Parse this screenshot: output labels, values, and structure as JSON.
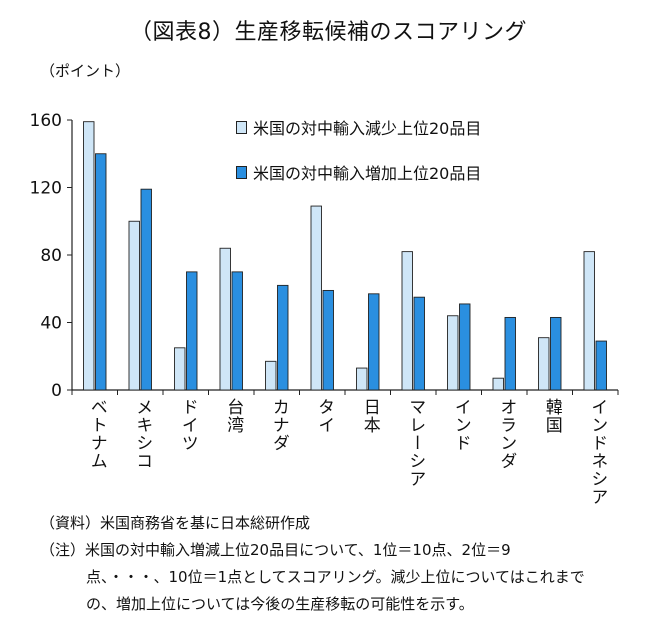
{
  "title": "（図表8）生産移転候補のスコアリング",
  "chart_data": {
    "type": "bar",
    "unit_label": "（ポイント）",
    "categories": [
      "ベトナム",
      "メキシコ",
      "ドイツ",
      "台湾",
      "カナダ",
      "タイ",
      "日本",
      "マレーシア",
      "インド",
      "オランダ",
      "韓国",
      "インドネシア"
    ],
    "series": [
      {
        "name": "米国の対中輸入減少上位20品目",
        "color": "#cfe6f7",
        "values": [
          159,
          100,
          25,
          84,
          17,
          109,
          13,
          82,
          44,
          7,
          31,
          82
        ]
      },
      {
        "name": "米国の対中輸入増加上位20品目",
        "color": "#2a8fe0",
        "values": [
          140,
          119,
          70,
          70,
          62,
          59,
          57,
          55,
          51,
          43,
          43,
          29
        ]
      }
    ],
    "ylim": [
      0,
      160
    ],
    "yticks": [
      0,
      40,
      80,
      120,
      160
    ],
    "grid": false,
    "legend_position": "top-right"
  },
  "notes": {
    "source": "（資料）米国商務省を基に日本総研作成",
    "note_line1": "（注）米国の対中輸入増減上位20品目について、1位＝10点、2位＝9",
    "note_line2": "点、・・・、10位＝1点としてスコアリング。減少上位についてはこれまで",
    "note_line3": "の、増加上位については今後の生産移転の可能性を示す。"
  }
}
